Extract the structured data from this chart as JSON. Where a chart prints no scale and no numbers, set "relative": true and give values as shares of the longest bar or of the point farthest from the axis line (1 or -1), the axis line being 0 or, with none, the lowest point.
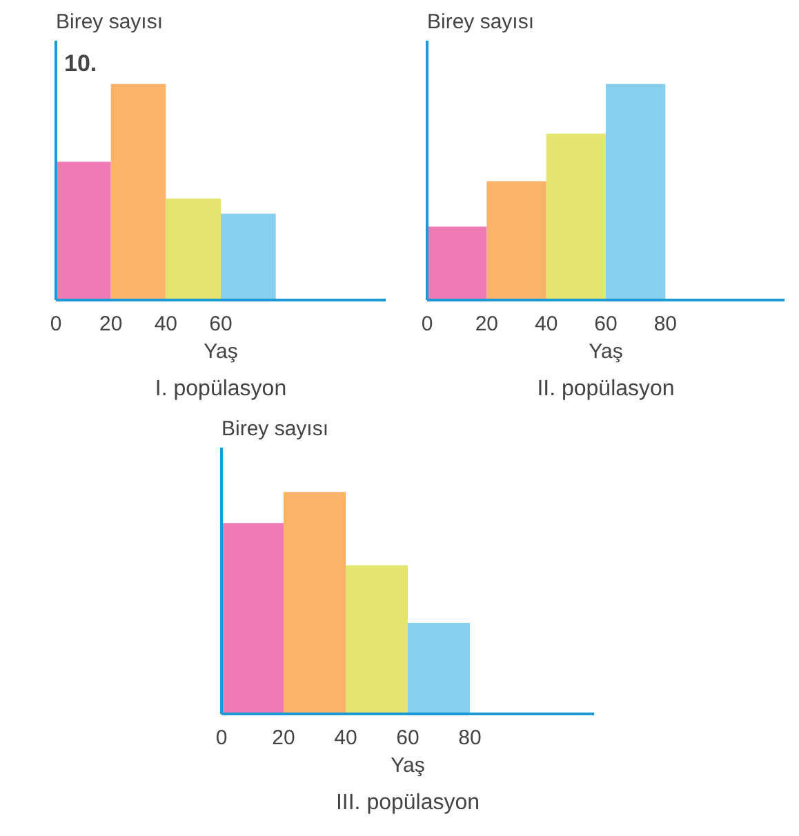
{
  "chart_data": [
    {
      "type": "bar",
      "title": "I. popülasyon",
      "xlabel": "Yaş",
      "ylabel": "Birey sayısı",
      "annotations": [
        "10."
      ],
      "relative": true,
      "x": [
        10,
        30,
        50,
        70
      ],
      "values": [
        0.64,
        1,
        0.47,
        0.4
      ],
      "colors": [
        "#f07ab4",
        "#fbb36a",
        "#e3e56f",
        "#86cfee"
      ],
      "xlim": [
        0,
        120
      ],
      "xticks": [
        0,
        20,
        40,
        60
      ]
    },
    {
      "type": "bar",
      "title": "II. popülasyon",
      "xlabel": "Yaş",
      "ylabel": "Birey sayısı",
      "relative": true,
      "x": [
        10,
        30,
        50,
        70
      ],
      "values": [
        0.34,
        0.55,
        0.77,
        1
      ],
      "colors": [
        "#f07ab4",
        "#fbb36a",
        "#e3e56f",
        "#86cfee"
      ],
      "xlim": [
        0,
        120
      ],
      "xticks": [
        0,
        20,
        40,
        60,
        80
      ]
    },
    {
      "type": "bar",
      "title": "III. popülasyon",
      "xlabel": "Yaş",
      "ylabel": "Birey sayısı",
      "relative": true,
      "x": [
        10,
        30,
        50,
        70
      ],
      "values": [
        0.86,
        1,
        0.67,
        0.41
      ],
      "colors": [
        "#f07ab4",
        "#fbb36a",
        "#e3e56f",
        "#86cfee"
      ],
      "xlim": [
        0,
        120
      ],
      "xticks": [
        0,
        20,
        40,
        60,
        80
      ]
    }
  ]
}
